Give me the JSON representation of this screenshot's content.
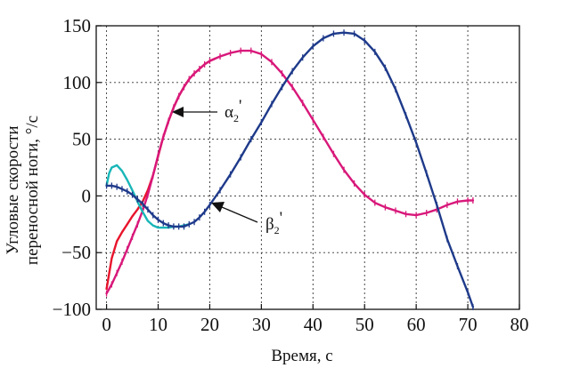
{
  "chart_data": {
    "type": "line",
    "xlabel": "Время, с",
    "ylabel_lines": [
      "Угловые скорости",
      "переносной ноги, °/с"
    ],
    "xlim": [
      -2,
      80
    ],
    "ylim": [
      -100,
      150
    ],
    "xticks": [
      0,
      10,
      20,
      30,
      40,
      50,
      60,
      70,
      80
    ],
    "yticks": [
      -100,
      -50,
      0,
      50,
      100,
      150
    ],
    "ytick_labels": [
      "−100",
      "−50",
      "0",
      "50",
      "100",
      "150"
    ],
    "grid": true,
    "grid_style": "dotted",
    "series": [
      {
        "color": "#e8142c",
        "marker": "none",
        "points": [
          [
            0,
            -82
          ],
          [
            1,
            -55
          ],
          [
            2,
            -40
          ],
          [
            3,
            -32
          ],
          [
            4,
            -25
          ],
          [
            5,
            -18
          ],
          [
            6,
            -12
          ],
          [
            7,
            -5
          ],
          [
            8,
            5
          ],
          [
            9,
            18
          ],
          [
            10,
            35
          ],
          [
            11,
            52
          ],
          [
            12,
            66
          ],
          [
            13,
            78
          ],
          [
            14,
            88
          ],
          [
            15,
            96
          ],
          [
            16,
            103
          ],
          [
            17,
            108
          ],
          [
            18,
            112
          ],
          [
            19,
            116
          ],
          [
            20,
            119
          ],
          [
            21,
            121
          ]
        ]
      },
      {
        "color": "#d8187a",
        "marker": "tick",
        "points": [
          [
            0,
            -86
          ],
          [
            1,
            -78
          ],
          [
            2,
            -68
          ],
          [
            3,
            -58
          ],
          [
            4,
            -47
          ],
          [
            5,
            -36
          ],
          [
            6,
            -25
          ],
          [
            7,
            -13
          ],
          [
            8,
            1
          ],
          [
            9,
            18
          ],
          [
            10,
            36
          ],
          [
            11,
            52
          ],
          [
            12,
            66
          ],
          [
            13,
            78
          ],
          [
            14,
            88
          ],
          [
            15,
            96
          ],
          [
            16,
            103
          ],
          [
            17,
            108
          ],
          [
            18,
            112
          ],
          [
            19,
            116
          ],
          [
            20,
            119
          ],
          [
            22,
            123
          ],
          [
            24,
            126
          ],
          [
            26,
            128
          ],
          [
            28,
            128
          ],
          [
            30,
            125
          ],
          [
            32,
            118
          ],
          [
            34,
            108
          ],
          [
            36,
            96
          ],
          [
            38,
            82
          ],
          [
            40,
            67
          ],
          [
            42,
            52
          ],
          [
            44,
            37
          ],
          [
            46,
            23
          ],
          [
            48,
            11
          ],
          [
            50,
            1
          ],
          [
            52,
            -6
          ],
          [
            54,
            -10
          ],
          [
            56,
            -13
          ],
          [
            58,
            -16
          ],
          [
            60,
            -17
          ],
          [
            62,
            -15
          ],
          [
            64,
            -12
          ],
          [
            66,
            -8
          ],
          [
            68,
            -5
          ],
          [
            70,
            -4
          ],
          [
            71,
            -4
          ]
        ]
      },
      {
        "color": "#18b6b8",
        "marker": "none",
        "points": [
          [
            0,
            9
          ],
          [
            0.5,
            20
          ],
          [
            1,
            25
          ],
          [
            2,
            27
          ],
          [
            3,
            22
          ],
          [
            4,
            14
          ],
          [
            5,
            5
          ],
          [
            6,
            -5
          ],
          [
            7,
            -14
          ],
          [
            8,
            -22
          ],
          [
            9,
            -26
          ],
          [
            10,
            -28
          ],
          [
            11,
            -28
          ],
          [
            12,
            -28
          ],
          [
            13,
            -27
          ],
          [
            14,
            -27
          ],
          [
            15,
            -26
          ],
          [
            16,
            -25
          ]
        ]
      },
      {
        "color": "#1e3a8a",
        "marker": "tick",
        "points": [
          [
            0,
            9
          ],
          [
            1,
            9
          ],
          [
            2,
            8
          ],
          [
            3,
            6
          ],
          [
            4,
            4
          ],
          [
            5,
            1
          ],
          [
            6,
            -3
          ],
          [
            7,
            -7
          ],
          [
            8,
            -12
          ],
          [
            9,
            -17
          ],
          [
            10,
            -21
          ],
          [
            11,
            -24
          ],
          [
            12,
            -26
          ],
          [
            13,
            -27
          ],
          [
            14,
            -27
          ],
          [
            15,
            -27
          ],
          [
            16,
            -25
          ],
          [
            17,
            -23
          ],
          [
            18,
            -19
          ],
          [
            19,
            -14
          ],
          [
            20,
            -8
          ],
          [
            22,
            5
          ],
          [
            24,
            19
          ],
          [
            26,
            34
          ],
          [
            28,
            50
          ],
          [
            30,
            65
          ],
          [
            32,
            81
          ],
          [
            34,
            96
          ],
          [
            36,
            110
          ],
          [
            38,
            122
          ],
          [
            40,
            132
          ],
          [
            42,
            139
          ],
          [
            44,
            143
          ],
          [
            46,
            144
          ],
          [
            48,
            143
          ],
          [
            50,
            137
          ],
          [
            52,
            127
          ],
          [
            54,
            113
          ],
          [
            56,
            94
          ],
          [
            58,
            71
          ],
          [
            60,
            47
          ],
          [
            62,
            20
          ],
          [
            64,
            -8
          ],
          [
            66,
            -38
          ],
          [
            68,
            -62
          ],
          [
            70,
            -85
          ],
          [
            71,
            -98
          ]
        ]
      }
    ],
    "annotations": [
      {
        "base": "α",
        "sub": "2",
        "sup": "'"
      },
      {
        "base": "β",
        "sub": "2",
        "sup": "'"
      }
    ]
  }
}
